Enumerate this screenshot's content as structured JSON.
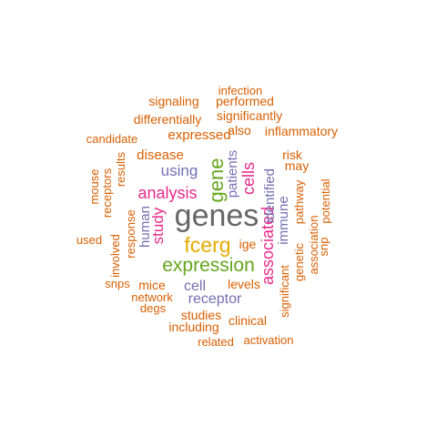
{
  "palette": {
    "orange": "#D95F02",
    "purple": "#7570B3",
    "magenta": "#E7298A",
    "green": "#66A61E",
    "gold": "#E6AB02",
    "gray": "#666666"
  },
  "words": {
    "genes": "genes",
    "fcerg": "fcerg",
    "expression": "expression",
    "gene": "gene",
    "analysis": "analysis",
    "associated": "associated",
    "cells": "cells",
    "study": "study",
    "using": "using",
    "receptor": "receptor",
    "cell": "cell",
    "expressed": "expressed",
    "patients": "patients",
    "identified": "identified",
    "immune": "immune",
    "human": "human",
    "disease": "disease",
    "ige": "ige",
    "levels": "levels",
    "mice": "mice",
    "network": "network",
    "snps": "snps",
    "degs": "degs",
    "studies": "studies",
    "including": "including",
    "clinical": "clinical",
    "related": "related",
    "activation": "activation",
    "significant": "significant",
    "genetic": "genetic",
    "pathway": "pathway",
    "association": "association",
    "snp": "snp",
    "potential": "potential",
    "risk": "risk",
    "may": "may",
    "inflammatory": "inflammatory",
    "also": "also",
    "significantly": "significantly",
    "performed": "performed",
    "infection": "infection",
    "signaling": "signaling",
    "differentially": "differentially",
    "candidate": "candidate",
    "results": "results",
    "receptors": "receptors",
    "mouse": "mouse",
    "response": "response",
    "involved": "involved",
    "used": "used"
  }
}
